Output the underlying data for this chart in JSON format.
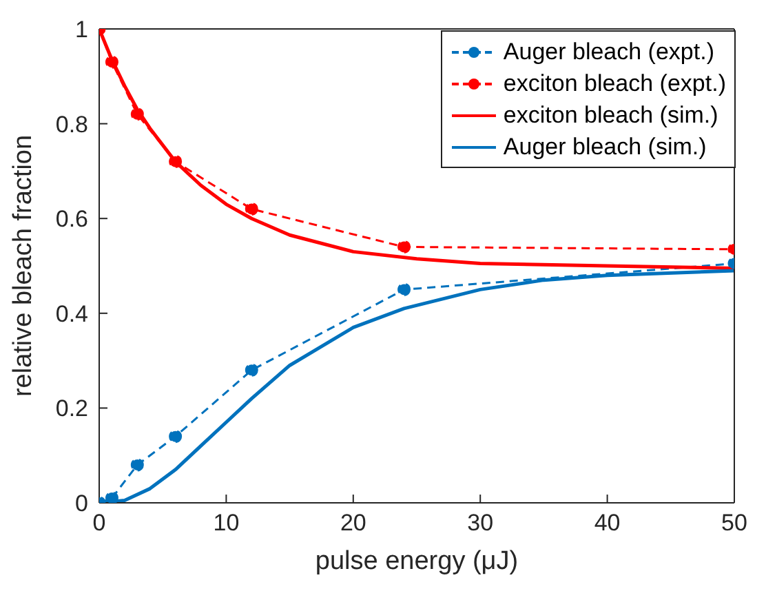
{
  "chart_data": {
    "type": "line",
    "xlabel": "pulse energy (μJ)",
    "ylabel": "relative bleach fraction",
    "xlim": [
      0,
      50
    ],
    "xticks": [
      0,
      10,
      20,
      30,
      40,
      50
    ],
    "ylim": [
      0,
      1
    ],
    "yticks": [
      0,
      {
        "value": 0.2,
        "label": "0.2"
      },
      {
        "value": 0.4,
        "label": "0.4"
      },
      {
        "value": 0.6,
        "label": "0.6"
      },
      {
        "value": 0.8,
        "label": "0.8"
      },
      1
    ],
    "grid": false,
    "legend": "top right",
    "series": [
      {
        "name": "Auger bleach (expt.)",
        "color": "#0072bd",
        "marker": "circle",
        "line_style": "dashed",
        "x": [
          0,
          1,
          3,
          6,
          12,
          24,
          50
        ],
        "values": [
          0,
          0.01,
          0.08,
          0.14,
          0.28,
          0.45,
          0.505
        ]
      },
      {
        "name": "exciton bleach (expt.)",
        "color": "#ff0000",
        "marker": "circle",
        "line_style": "dashed",
        "x": [
          0,
          1,
          3,
          6,
          12,
          24,
          50
        ],
        "values": [
          1,
          0.93,
          0.82,
          0.72,
          0.62,
          0.54,
          0.535
        ]
      },
      {
        "name": "exciton bleach (sim.)",
        "color": "#ff0000",
        "marker": "none",
        "line_style": "solid",
        "x": [
          0,
          1,
          2,
          3,
          4,
          6,
          8,
          10,
          12,
          15,
          20,
          25,
          30,
          40,
          50
        ],
        "values": [
          1,
          0.935,
          0.88,
          0.83,
          0.79,
          0.72,
          0.67,
          0.63,
          0.6,
          0.565,
          0.53,
          0.515,
          0.505,
          0.5,
          0.495
        ]
      },
      {
        "name": "Auger bleach (sim.)",
        "color": "#0072bd",
        "marker": "none",
        "line_style": "solid",
        "x": [
          0,
          2,
          4,
          6,
          8,
          10,
          12,
          15,
          20,
          24,
          30,
          35,
          40,
          50
        ],
        "values": [
          0,
          0.005,
          0.03,
          0.07,
          0.12,
          0.17,
          0.22,
          0.29,
          0.37,
          0.41,
          0.45,
          0.47,
          0.48,
          0.49
        ]
      }
    ]
  }
}
